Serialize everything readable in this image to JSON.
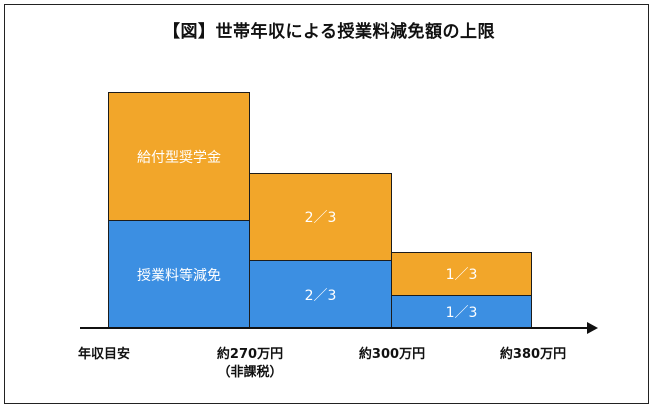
{
  "title": "【図】世帯年収による授業料減免額の上限",
  "blocks": {
    "scholarship": "給付型奨学金",
    "tuition_reduction": "授業料等減免",
    "mid_top": "2／3",
    "mid_bottom": "2／3",
    "right_top": "1／3",
    "right_bottom": "1／3"
  },
  "axis": {
    "start": "年収目安",
    "t1": "約270万円",
    "t1_note": "（非課税）",
    "t2": "約300万円",
    "t3": "約380万円"
  },
  "colors": {
    "orange": "#f2a62a",
    "blue": "#3c8fe2"
  }
}
